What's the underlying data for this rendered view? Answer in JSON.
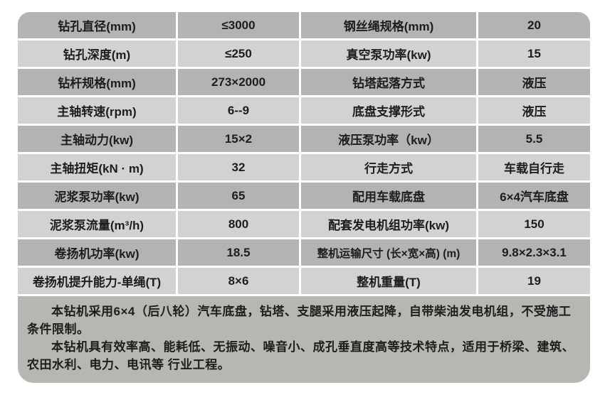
{
  "colors": {
    "page_bg": "#ffffff",
    "row_dark": "#b3b3b2",
    "row_light": "#d2d2d1",
    "notes_bg": "#b5b7b0",
    "text": "#1d1d1d"
  },
  "table": {
    "rows": [
      {
        "label_left": "钻孔直径(mm)",
        "value_left": "≤3000",
        "label_right": "钢丝绳规格(mm)",
        "value_right": "20"
      },
      {
        "label_left": "钻孔深度(m)",
        "value_left": "≤250",
        "label_right": "真空泵功率(kw)",
        "value_right": "15"
      },
      {
        "label_left": "钻杆规格(mm)",
        "value_left": "273×2000",
        "label_right": "钻塔起落方式",
        "value_right": "液压"
      },
      {
        "label_left": "主轴转速(rpm)",
        "value_left": "6--9",
        "label_right": "底盘支撑形式",
        "value_right": "液压"
      },
      {
        "label_left": "主轴动力(kw)",
        "value_left": "15×2",
        "label_right": "液压泵功率（kw）",
        "value_right": "5.5"
      },
      {
        "label_left": "主轴扭矩(kN · m)",
        "value_left": "32",
        "label_right": "行走方式",
        "value_right": "车载自行走"
      },
      {
        "label_left": "泥浆泵功率(kw)",
        "value_left": "65",
        "label_right": "配用车载底盘",
        "value_right": "6×4汽车底盘"
      },
      {
        "label_left": "泥浆泵流量(m³/h)",
        "value_left": "800",
        "label_right": "配套发电机组功率(kw)",
        "value_right": "150"
      },
      {
        "label_left": "卷扬机功率(kw)",
        "value_left": "18.5",
        "label_right": "整机运输尺寸 (长×宽×高) (m)",
        "value_right": "9.8×2.3×3.1"
      },
      {
        "label_left": "卷扬机提升能力-单绳(T)",
        "value_left": "8×6",
        "label_right": "整机重量(T)",
        "value_right": "19"
      }
    ]
  },
  "notes": [
    "本钻机采用6×4（后八轮）汽车底盘，钻塔、支腿采用液压起降，自带柴油发电机组，不受施工条件限制。",
    "本钻机具有效率高、能耗低、无振动、噪音小、成孔垂直度高等技术特点，适用于桥梁、建筑、农田水利、电力、电讯等 行业工程。"
  ]
}
